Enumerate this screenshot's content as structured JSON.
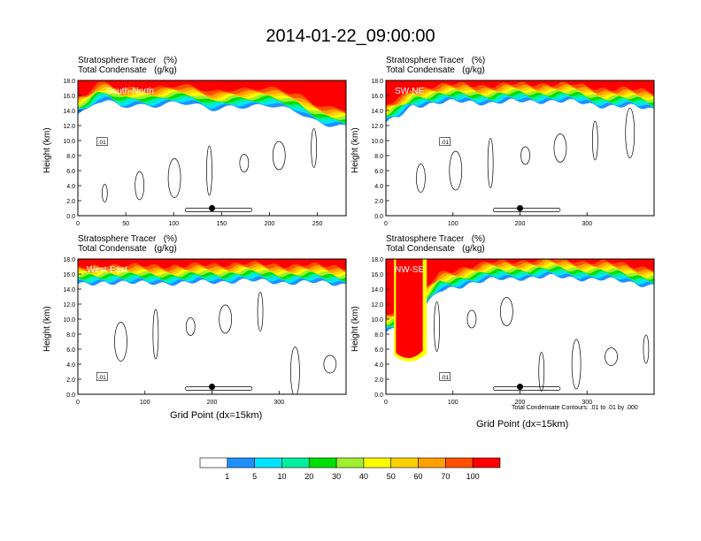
{
  "figure": {
    "title": "2014-01-22_09:00:00",
    "contour_note": "Total Condensate Contours: .01 to .01 by .000",
    "xlabel": "Grid Point (dx=15km)",
    "ylabel": "Height (km)"
  },
  "colorbar": {
    "labels": [
      "1",
      "5",
      "10",
      "20",
      "30",
      "40",
      "50",
      "60",
      "70",
      "100"
    ],
    "colors": [
      "#ffffff",
      "#1e90ff",
      "#00e5ff",
      "#00f0a0",
      "#00e000",
      "#a0f030",
      "#ffff00",
      "#ffd000",
      "#ffa000",
      "#ff5000",
      "#ff0000"
    ]
  },
  "chart_data": [
    {
      "type": "heatmap",
      "section": "South-North",
      "subtitle_line1": "Stratosphere Tracer   (%)",
      "subtitle_line2": "Total Condensate   (g/kg)",
      "xticks": [
        "0",
        "50",
        "100",
        "150",
        "200",
        "250"
      ],
      "xlim": [
        0,
        280
      ],
      "ytick_labels": [
        "0.0",
        "2.0",
        "4.0",
        "6.0",
        "8.0",
        "10.0",
        "12.0",
        "14.0",
        "16.0",
        "18.0"
      ],
      "ylim": [
        0,
        18
      ],
      "tropopause_km": [
        [
          0,
          13.8
        ],
        [
          10,
          14.2
        ],
        [
          20,
          15.3
        ],
        [
          30,
          15.5
        ],
        [
          45,
          14.8
        ],
        [
          60,
          15.2
        ],
        [
          80,
          15.0
        ],
        [
          100,
          15.2
        ],
        [
          120,
          15.0
        ],
        [
          140,
          14.5
        ],
        [
          160,
          15.0
        ],
        [
          180,
          14.8
        ],
        [
          200,
          14.8
        ],
        [
          215,
          14.5
        ],
        [
          230,
          14.2
        ],
        [
          245,
          13.2
        ],
        [
          260,
          12.5
        ],
        [
          280,
          12.0
        ]
      ],
      "marker_x": 140,
      "contour_label": ".01"
    },
    {
      "type": "heatmap",
      "section": "SW-NE",
      "subtitle_line1": "Stratosphere Tracer   (%)",
      "subtitle_line2": "Total Condensate   (g/kg)",
      "xticks": [
        "0",
        "100",
        "200",
        "300"
      ],
      "xlim": [
        0,
        400
      ],
      "ytick_labels": [
        "0.0",
        "2.0",
        "4.0",
        "6.0",
        "8.0",
        "10.0",
        "12.0",
        "14.0",
        "16.0",
        "18.0"
      ],
      "ylim": [
        0,
        18
      ],
      "tropopause_km": [
        [
          0,
          12.5
        ],
        [
          20,
          13.5
        ],
        [
          40,
          15.0
        ],
        [
          80,
          15.3
        ],
        [
          120,
          15.5
        ],
        [
          160,
          15.3
        ],
        [
          200,
          15.5
        ],
        [
          240,
          15.6
        ],
        [
          280,
          15.4
        ],
        [
          320,
          15.0
        ],
        [
          360,
          14.8
        ],
        [
          400,
          14.5
        ]
      ],
      "marker_x": 200,
      "contour_label": ".01"
    },
    {
      "type": "heatmap",
      "section": "West-East",
      "subtitle_line1": "Stratosphere Tracer   (%)",
      "subtitle_line2": "Total Condensate   (g/kg)",
      "xticks": [
        "0",
        "100",
        "200",
        "300"
      ],
      "xlim": [
        0,
        400
      ],
      "ytick_labels": [
        "0.0",
        "2.0",
        "4.0",
        "6.0",
        "8.0",
        "10.0",
        "12.0",
        "14.0",
        "16.0",
        "18.0"
      ],
      "ylim": [
        0,
        18
      ],
      "tropopause_km": [
        [
          0,
          14.8
        ],
        [
          40,
          15.3
        ],
        [
          80,
          15.0
        ],
        [
          120,
          15.2
        ],
        [
          160,
          15.0
        ],
        [
          200,
          15.3
        ],
        [
          240,
          15.4
        ],
        [
          280,
          15.3
        ],
        [
          320,
          15.2
        ],
        [
          360,
          15.1
        ],
        [
          400,
          15.0
        ]
      ],
      "marker_x": 200,
      "contour_label": ".01"
    },
    {
      "type": "heatmap",
      "section": "NW-SE",
      "subtitle_line1": "Stratosphere Tracer   (%)",
      "subtitle_line2": "Total Condensate   (g/kg)",
      "xticks": [
        "0",
        "100",
        "200",
        "300"
      ],
      "xlim": [
        0,
        400
      ],
      "ytick_labels": [
        "0.0",
        "2.0",
        "4.0",
        "6.0",
        "8.0",
        "10.0",
        "12.0",
        "14.0",
        "16.0",
        "18.0"
      ],
      "ylim": [
        0,
        18
      ],
      "tropopause_km": [
        [
          0,
          8.5
        ],
        [
          10,
          9.0
        ],
        [
          60,
          12.0
        ],
        [
          80,
          14.0
        ],
        [
          120,
          15.0
        ],
        [
          160,
          15.5
        ],
        [
          200,
          15.8
        ],
        [
          240,
          15.9
        ],
        [
          280,
          15.8
        ],
        [
          320,
          15.6
        ],
        [
          360,
          15.2
        ],
        [
          400,
          14.8
        ]
      ],
      "intrusion_x_range": [
        15,
        55
      ],
      "intrusion_base_km": 4.0,
      "marker_x": 200,
      "contour_label": ".01"
    }
  ]
}
